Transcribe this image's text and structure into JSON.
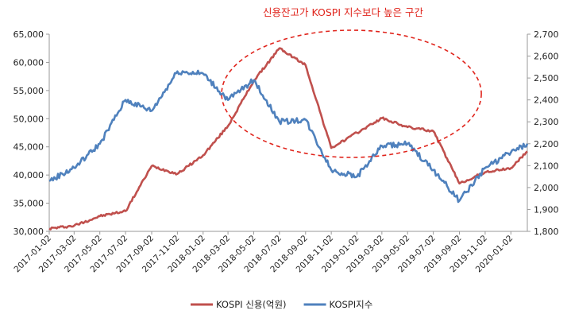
{
  "chart_data": {
    "type": "line",
    "title": "신용잔고가 KOSPI 지수보다 높은 구간",
    "x": [
      "2017-01-02",
      "2017-03-02",
      "2017-05-02",
      "2017-07-02",
      "2017-09-02",
      "2017-11-02",
      "2018-01-02",
      "2018-03-02",
      "2018-05-02",
      "2018-07-02",
      "2018-09-02",
      "2018-11-02",
      "2019-01-02",
      "2019-03-02",
      "2019-05-02",
      "2019-07-02",
      "2019-09-02",
      "2019-11-02",
      "2020-01-02",
      "2020-02-10"
    ],
    "x_tick_labels": [
      "2017-01-02",
      "2017-03-02",
      "2017-05-02",
      "2017-07-02",
      "2017-09-02",
      "2017-11-02",
      "2018-01-02",
      "2018-03-02",
      "2018-05-02",
      "2018-07-02",
      "2018-09-02",
      "2018-11-02",
      "2019-01-02",
      "2019-03-02",
      "2019-05-02",
      "2019-07-02",
      "2019-09-02",
      "2019-11-02",
      "2020-01-02"
    ],
    "left_axis": {
      "ylim": [
        30000,
        65000
      ],
      "ticks": [
        "30,000",
        "35,000",
        "40,000",
        "45,000",
        "50,000",
        "55,000",
        "60,000",
        "65,000"
      ]
    },
    "right_axis": {
      "ylim": [
        1800,
        2700
      ],
      "ticks": [
        "1,800",
        "1,900",
        "2,000",
        "2,100",
        "2,200",
        "2,300",
        "2,400",
        "2,500",
        "2,600",
        "2,700"
      ]
    },
    "series": [
      {
        "name": "KOSPI 신용(억원)",
        "axis": "left",
        "color": "#c0504d",
        "values": [
          30500,
          31000,
          32700,
          33600,
          41600,
          40200,
          43500,
          48700,
          56700,
          62500,
          59500,
          44800,
          47500,
          50100,
          48500,
          47800,
          38500,
          40500,
          41200,
          44200
        ]
      },
      {
        "name": "KOSPI지수",
        "axis": "right",
        "color": "#4f81bd",
        "values": [
          2030,
          2090,
          2200,
          2400,
          2350,
          2530,
          2520,
          2400,
          2490,
          2300,
          2310,
          2080,
          2050,
          2190,
          2200,
          2080,
          1940,
          2090,
          2160,
          2200
        ]
      }
    ],
    "annotation": {
      "shape": "dashed-ellipse",
      "color": "#e0241c",
      "spans": [
        "2018-03-02",
        "2019-08-02"
      ]
    },
    "legend_position": "bottom-center",
    "grid": false
  }
}
